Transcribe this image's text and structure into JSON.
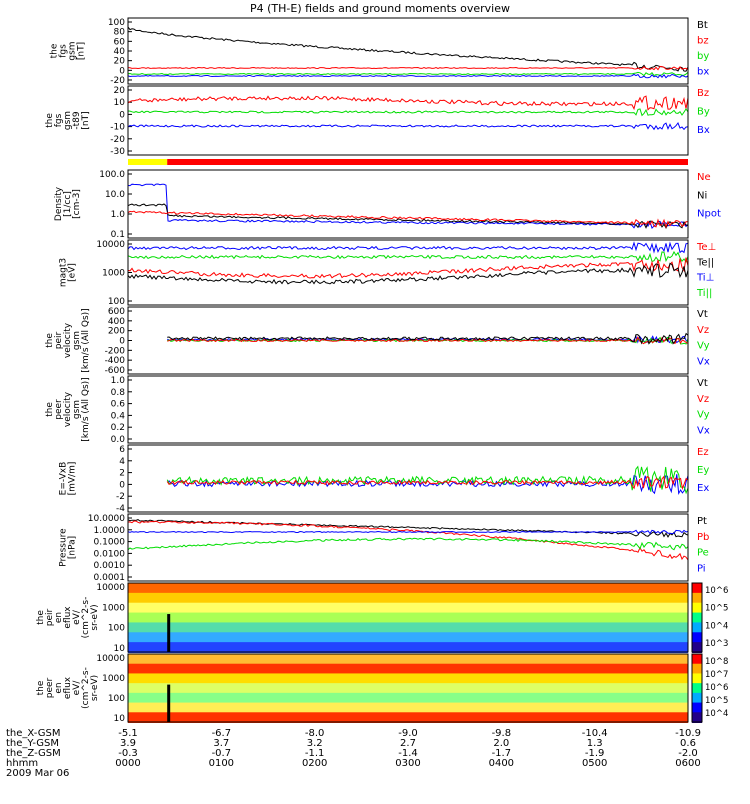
{
  "title": "P4 (TH-E) fields and ground moments overview",
  "colors": {
    "black": "#000000",
    "red": "#ff0000",
    "green": "#00dd00",
    "blue": "#0000ff",
    "yellow": "#ffff00"
  },
  "panels": [
    {
      "id": "p1",
      "ylabel": [
        "the",
        "fgs",
        "gsm",
        "[nT]"
      ],
      "ticks": [
        "100",
        "80",
        "60",
        "40",
        "20",
        "0",
        "-20"
      ],
      "legend": [
        {
          "text": "Bt",
          "color": "#000000"
        },
        {
          "text": "bz",
          "color": "#ff0000"
        },
        {
          "text": "by",
          "color": "#00dd00"
        },
        {
          "text": "bx",
          "color": "#0000ff"
        }
      ]
    },
    {
      "id": "p2",
      "ylabel": [
        "the",
        "fgs",
        "gsm",
        "-t89",
        "[nT]"
      ],
      "ticks": [
        "20",
        "10",
        "0",
        "-10",
        "-20",
        "-30"
      ],
      "legend": [
        {
          "text": "Bz",
          "color": "#ff0000"
        },
        {
          "text": "By",
          "color": "#00dd00"
        },
        {
          "text": "Bx",
          "color": "#0000ff"
        }
      ]
    },
    {
      "id": "p3",
      "ylabel": [
        "Density",
        "[1/cc]",
        "[cm-3]"
      ],
      "ticks": [
        "100.0",
        "10.0",
        "1.0",
        "0.1"
      ],
      "legend": [
        {
          "text": "Ne",
          "color": "#ff0000"
        },
        {
          "text": "Ni",
          "color": "#000000"
        },
        {
          "text": "Npot",
          "color": "#0000ff"
        }
      ]
    },
    {
      "id": "p4",
      "ylabel": [
        "magt3",
        "[eV]"
      ],
      "ticks": [
        "10000",
        "1000",
        "100"
      ],
      "legend": [
        {
          "text": "Te⊥",
          "color": "#ff0000"
        },
        {
          "text": "Te||",
          "color": "#000000"
        },
        {
          "text": "Ti⊥",
          "color": "#0000ff"
        },
        {
          "text": "Ti||",
          "color": "#00dd00"
        }
      ]
    },
    {
      "id": "p5",
      "ylabel": [
        "the",
        "peir",
        "velocity",
        "gsm",
        "[km/s (All Qs)]"
      ],
      "ticks": [
        "600",
        "400",
        "200",
        "0",
        "-200",
        "-400",
        "-600"
      ],
      "legend": [
        {
          "text": "Vt",
          "color": "#000000"
        },
        {
          "text": "Vz",
          "color": "#ff0000"
        },
        {
          "text": "Vy",
          "color": "#00dd00"
        },
        {
          "text": "Vx",
          "color": "#0000ff"
        }
      ]
    },
    {
      "id": "p6",
      "ylabel": [
        "the",
        "peer",
        "velocity",
        "gsm",
        "[km/s (All Qs)]"
      ],
      "ticks": [
        "1.0",
        "0.8",
        "0.6",
        "0.4",
        "0.2",
        "0.0"
      ],
      "legend": [
        {
          "text": "Vt",
          "color": "#000000"
        },
        {
          "text": "Vz",
          "color": "#ff0000"
        },
        {
          "text": "Vy",
          "color": "#00dd00"
        },
        {
          "text": "Vx",
          "color": "#0000ff"
        }
      ]
    },
    {
      "id": "p7",
      "ylabel": [
        "E=-VxB",
        "[mV/m]"
      ],
      "ticks": [
        "6",
        "4",
        "2",
        "0",
        "-2",
        "-4"
      ],
      "legend": [
        {
          "text": "Ez",
          "color": "#ff0000"
        },
        {
          "text": "Ey",
          "color": "#00dd00"
        },
        {
          "text": "Ex",
          "color": "#0000ff"
        }
      ]
    },
    {
      "id": "p8",
      "ylabel": [
        "Pressure",
        "[nPa]"
      ],
      "ticks": [
        "10.0000",
        "1.0000",
        "0.1000",
        "0.0100",
        "0.0010",
        "0.0001"
      ],
      "legend": [
        {
          "text": "Pt",
          "color": "#000000"
        },
        {
          "text": "Pb",
          "color": "#ff0000"
        },
        {
          "text": "Pe",
          "color": "#00dd00"
        },
        {
          "text": "Pi",
          "color": "#0000ff"
        }
      ]
    },
    {
      "id": "p9",
      "ylabel": [
        "the",
        "peir",
        "en",
        "eflux",
        "eV/",
        "(cm^2-s-",
        "sr-eV)"
      ],
      "ticks": [
        "10000",
        "1000",
        "100",
        "10"
      ],
      "colorbar": [
        "10^6",
        "10^5",
        "10^4",
        "10^3"
      ]
    },
    {
      "id": "p10",
      "ylabel": [
        "the",
        "peer",
        "en",
        "eflux",
        "eV/",
        "(cm^2-s-",
        "sr-eV)"
      ],
      "ticks": [
        "10000",
        "1000",
        "100",
        "10"
      ],
      "colorbar": [
        "10^8",
        "10^7",
        "10^6",
        "10^5",
        "10^4"
      ]
    }
  ],
  "xaxis": {
    "rows": [
      {
        "label": "the_X-GSM",
        "values": [
          "-5.1",
          "-6.7",
          "-8.0",
          "-9.0",
          "-9.8",
          "-10.4",
          "-10.9"
        ]
      },
      {
        "label": "the_Y-GSM",
        "values": [
          "3.9",
          "3.7",
          "3.2",
          "2.7",
          "2.0",
          "1.3",
          "0.6"
        ]
      },
      {
        "label": "the_Z-GSM",
        "values": [
          "-0.3",
          "-0.7",
          "-1.1",
          "-1.4",
          "-1.7",
          "-1.9",
          "-2.0"
        ]
      },
      {
        "label": "hhmm",
        "values": [
          "0000",
          "0100",
          "0200",
          "0300",
          "0400",
          "0500",
          "0600"
        ]
      }
    ],
    "date": "2009 Mar 06"
  },
  "chart_data": {
    "type": "line",
    "title": "P4 (TH-E) fields and ground moments overview",
    "x": [
      "0000",
      "0100",
      "0200",
      "0300",
      "0400",
      "0500",
      "0600"
    ],
    "xlabel": "hhmm",
    "series": [
      {
        "name": "Bt",
        "values": [
          85,
          55,
          38,
          28,
          18,
          10,
          8
        ]
      },
      {
        "name": "bz",
        "values": [
          5,
          5,
          4,
          3,
          2,
          1,
          1
        ]
      },
      {
        "name": "by",
        "values": [
          -5,
          -3,
          -3,
          -2,
          -2,
          -2,
          0
        ]
      },
      {
        "name": "bx",
        "values": [
          -2,
          -3,
          -4,
          -3,
          -3,
          -2,
          -5
        ]
      },
      {
        "name": "Ne",
        "values": [
          1.0,
          0.5,
          0.4,
          0.35,
          0.3,
          0.3,
          0.2
        ]
      },
      {
        "name": "Ni",
        "values": [
          3.0,
          0.6,
          0.45,
          0.35,
          0.3,
          0.3,
          0.2
        ]
      },
      {
        "name": "Npot",
        "values": [
          30,
          0.3,
          0.2,
          0.2,
          0.2,
          0.2,
          0.15
        ]
      },
      {
        "name": "Pt",
        "values": [
          3.0,
          1.5,
          1.0,
          0.7,
          0.5,
          0.4,
          0.3
        ]
      },
      {
        "name": "Pb",
        "values": [
          2.5,
          1.0,
          0.5,
          0.3,
          0.1,
          0.02,
          0.01
        ]
      },
      {
        "name": "Pe",
        "values": [
          0.05,
          0.2,
          0.1,
          0.05,
          0.03,
          0.02,
          0.05
        ]
      },
      {
        "name": "Pi",
        "values": [
          0.5,
          0.5,
          0.4,
          0.4,
          0.3,
          0.3,
          0.3
        ]
      }
    ]
  }
}
